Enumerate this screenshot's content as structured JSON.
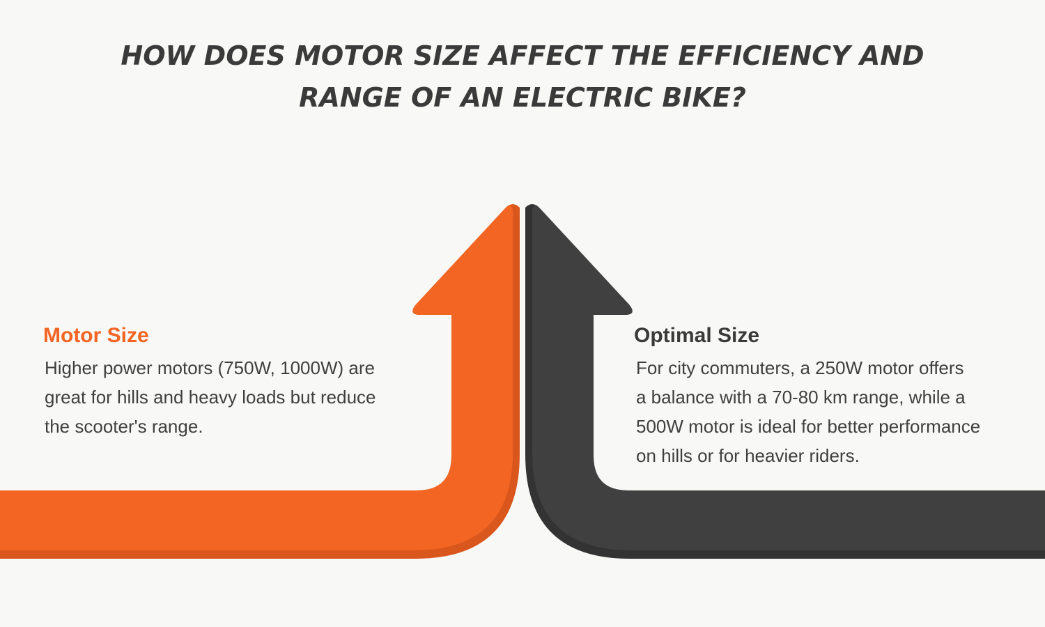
{
  "title": {
    "line1": "HOW DOES MOTOR SIZE AFFECT THE EFFICIENCY AND",
    "line2": "RANGE OF AN ELECTRIC BIKE?"
  },
  "left_panel": {
    "heading": "Motor Size",
    "lines": [
      "Higher power motors (750W, 1000W) are",
      "great for hills and heavy loads but reduce",
      "the scooter's range."
    ]
  },
  "right_panel": {
    "heading": "Optimal Size",
    "lines": [
      "For city commuters, a 250W motor offers",
      "a balance with a 70-80 km range, while a",
      "500W motor is ideal for better performance",
      "on hills or for heavier riders."
    ]
  },
  "colors": {
    "background": "#f8f8f6",
    "orange": "#f26522",
    "orange_shadow": "#d9561c",
    "dark": "#404040",
    "dark_shadow": "#333333",
    "title": "#3a3a3a"
  }
}
